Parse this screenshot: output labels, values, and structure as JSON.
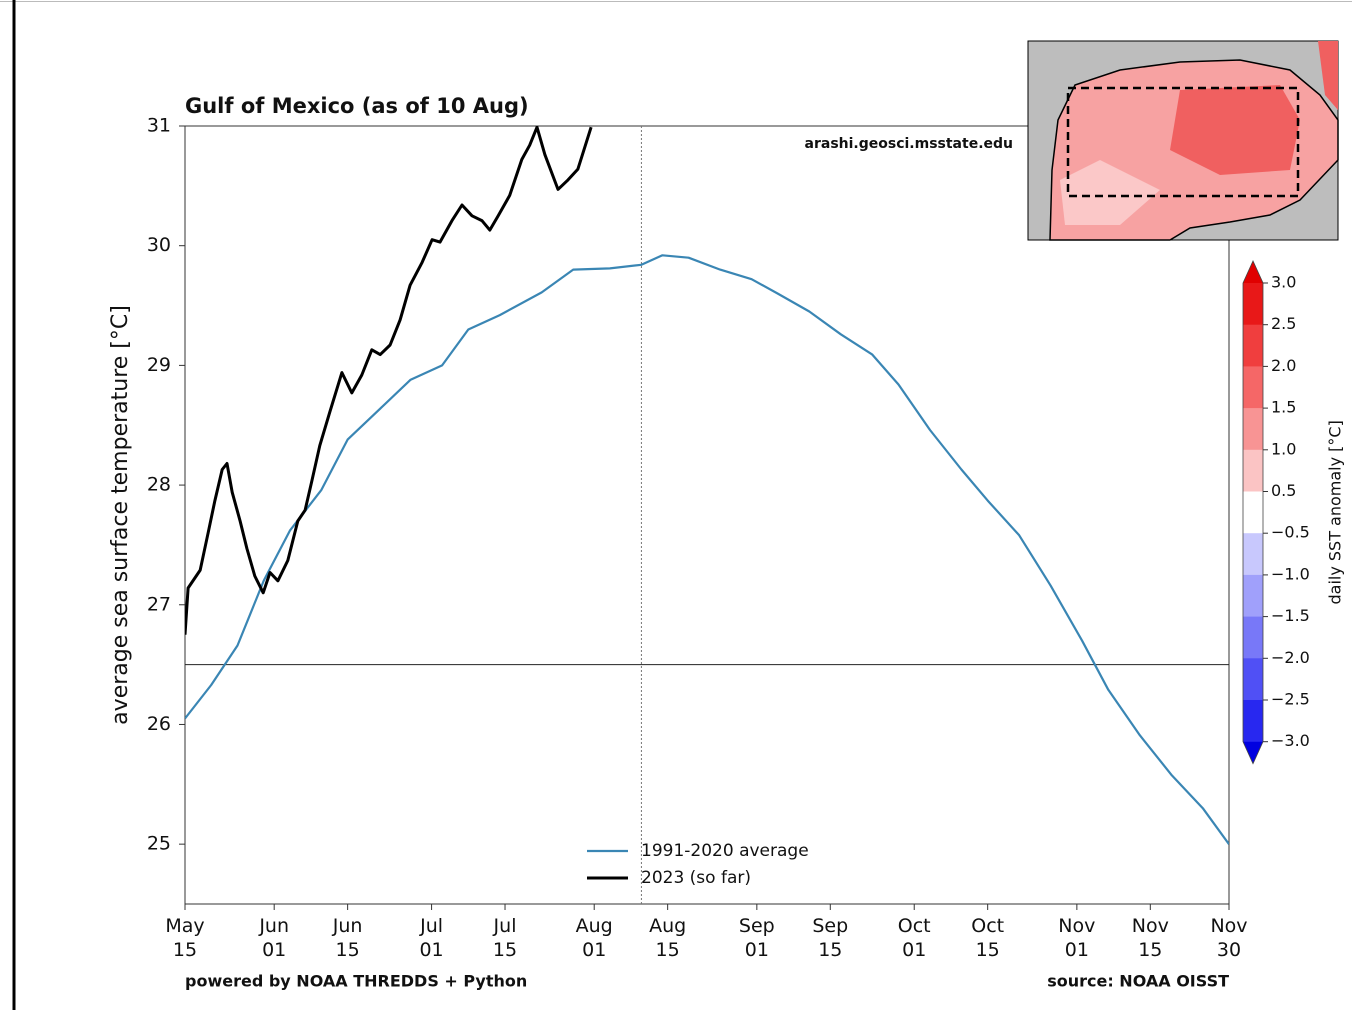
{
  "chart_data": {
    "type": "line",
    "title": "Gulf of Mexico (as of 10 Aug)",
    "y_label": "average sea surface temperature [°C]",
    "annotation": "arashi.geosci.msstate.edu",
    "footer_left": "powered by NOAA THREDDS + Python",
    "footer_right": "source: NOAA OISST",
    "xlim": [
      0,
      199
    ],
    "xticks": [
      {
        "value": 0,
        "label": "May\n15"
      },
      {
        "value": 17,
        "label": "Jun\n01"
      },
      {
        "value": 31,
        "label": "Jun\n15"
      },
      {
        "value": 47,
        "label": "Jul\n01"
      },
      {
        "value": 61,
        "label": "Jul\n15"
      },
      {
        "value": 78,
        "label": "Aug\n01"
      },
      {
        "value": 92,
        "label": "Aug\n15"
      },
      {
        "value": 109,
        "label": "Sep\n01"
      },
      {
        "value": 123,
        "label": "Sep\n15"
      },
      {
        "value": 139,
        "label": "Oct\n01"
      },
      {
        "value": 153,
        "label": "Oct\n15"
      },
      {
        "value": 170,
        "label": "Nov\n01"
      },
      {
        "value": 184,
        "label": "Nov\n15"
      },
      {
        "value": 199,
        "label": "Nov\n30"
      }
    ],
    "ylim": [
      24.5,
      31
    ],
    "yticks": [
      25,
      26,
      27,
      28,
      29,
      30,
      31
    ],
    "hline": 26.5,
    "vline": 87,
    "legend": "lower center",
    "series": [
      {
        "name": "1991-2020 average",
        "color": "#3a86b4",
        "x": [
          0,
          5,
          10,
          15,
          20,
          26,
          31,
          37,
          43,
          49,
          54,
          60,
          68,
          74,
          81,
          87,
          91,
          96,
          102,
          108,
          113,
          119,
          125,
          131,
          136,
          142,
          148,
          153,
          159,
          165,
          171,
          176,
          182,
          188,
          194,
          199
        ],
        "values": [
          26.05,
          26.33,
          26.66,
          27.2,
          27.62,
          27.96,
          28.38,
          28.63,
          28.88,
          29.0,
          29.3,
          29.42,
          29.61,
          29.8,
          29.81,
          29.84,
          29.92,
          29.9,
          29.8,
          29.72,
          29.6,
          29.45,
          29.26,
          29.09,
          28.84,
          28.46,
          28.13,
          27.87,
          27.58,
          27.16,
          26.7,
          26.29,
          25.91,
          25.58,
          25.3,
          25.0
        ]
      },
      {
        "name": "2023 (so far)",
        "color": "#000000",
        "x": [
          0,
          0.6,
          2.9,
          4.4,
          5.7,
          7.1,
          8,
          9,
          10.5,
          11.8,
          13.3,
          14.9,
          16.2,
          17.7,
          19.6,
          21.5,
          22.9,
          24.2,
          25.7,
          27.6,
          29.9,
          31.8,
          33.7,
          35.6,
          37.2,
          39.1,
          41,
          42.9,
          45.2,
          47.1,
          48.6,
          50.9,
          52.8,
          54.7,
          56.6,
          58.1,
          59.7,
          61.9,
          64.2,
          65.7,
          67.1,
          68.6,
          71.1,
          73,
          74.9,
          77.4
        ],
        "values": [
          26.75,
          27.14,
          27.29,
          27.6,
          27.87,
          28.13,
          28.18,
          27.94,
          27.7,
          27.47,
          27.24,
          27.1,
          27.27,
          27.2,
          27.37,
          27.7,
          27.79,
          28.04,
          28.33,
          28.61,
          28.94,
          28.77,
          28.92,
          29.13,
          29.09,
          29.17,
          29.38,
          29.67,
          29.86,
          30.05,
          30.03,
          30.21,
          30.34,
          30.25,
          30.21,
          30.13,
          30.25,
          30.42,
          30.72,
          30.84,
          30.99,
          30.76,
          30.47,
          30.55,
          30.64,
          30.99
        ]
      }
    ],
    "colorbar": {
      "label": "daily SST anomaly [°C]",
      "ticks": [
        {
          "value": 3.0,
          "label": "3.0"
        },
        {
          "value": 2.5,
          "label": "2.5"
        },
        {
          "value": 2.0,
          "label": "2.0"
        },
        {
          "value": 1.5,
          "label": "1.5"
        },
        {
          "value": 1.0,
          "label": "1.0"
        },
        {
          "value": 0.5,
          "label": "0.5"
        },
        {
          "value": -0.5,
          "label": "−0.5"
        },
        {
          "value": -1.0,
          "label": "−1.0"
        },
        {
          "value": -1.5,
          "label": "−1.5"
        },
        {
          "value": -2.0,
          "label": "−2.0"
        },
        {
          "value": -2.5,
          "label": "−2.5"
        },
        {
          "value": -3.0,
          "label": "−3.0"
        }
      ],
      "colors": [
        "#e81818",
        "#f03e3e",
        "#f56767",
        "#f89494",
        "#fbc4c4",
        "#ffffff",
        "#c8c8fd",
        "#a0a0fb",
        "#7878f8",
        "#5050f5",
        "#2828f0"
      ],
      "extend_colors": [
        "#e00000",
        "#0000e0"
      ]
    }
  }
}
